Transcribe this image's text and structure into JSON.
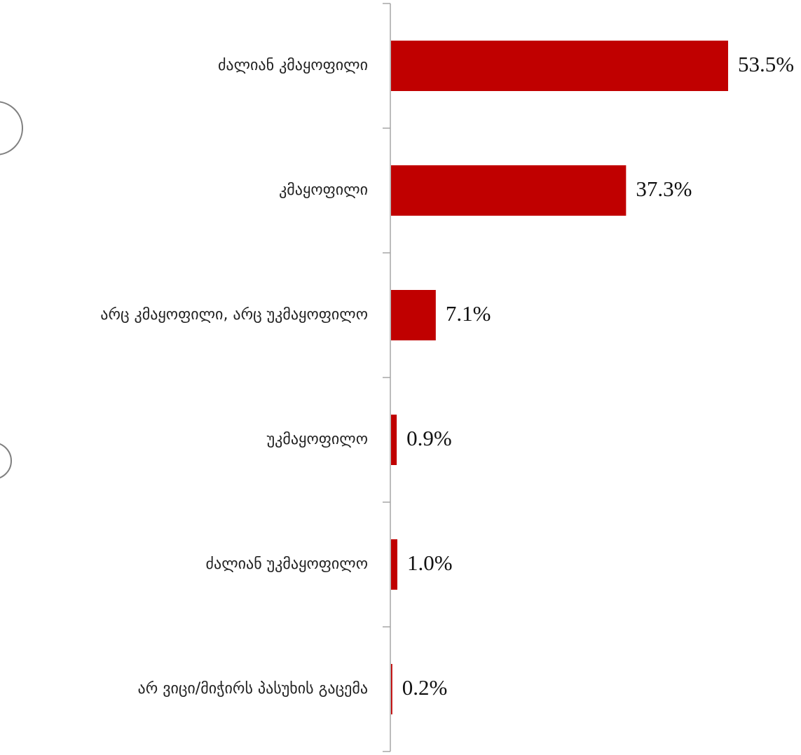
{
  "chart_data": {
    "type": "bar",
    "orientation": "horizontal",
    "categories": [
      "ძალიან კმაყოფილი",
      "კმაყოფილი",
      "არც კმაყოფილი, არც უკმაყოფილო",
      "უკმაყოფილო",
      "ძალიან უკმაყოფილო",
      "არ ვიცი/მიჭირს პასუხის გაცემა"
    ],
    "values": [
      53.5,
      37.3,
      7.1,
      0.9,
      1.0,
      0.2
    ],
    "data_labels": [
      "53.5%",
      "37.3%",
      "7.1%",
      "0.9%",
      "1.0%",
      "0.2%"
    ],
    "title": "",
    "xlabel": "",
    "ylabel": "",
    "xlim": [
      0,
      60
    ],
    "grid": false,
    "legend": "none",
    "bar_color": "#C00000",
    "axis_color": "#A6A6A6"
  }
}
